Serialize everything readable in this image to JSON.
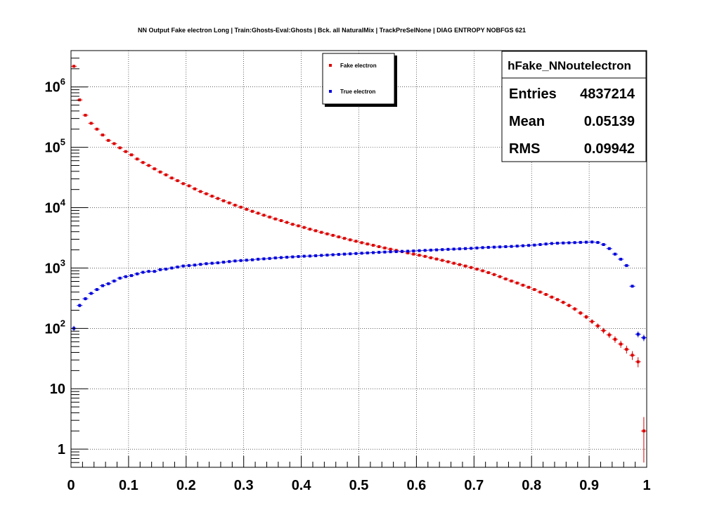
{
  "chart_data": {
    "type": "scatter",
    "title": "NN Output Fake electron Long | Train:Ghosts-Eval:Ghosts | Bck. all NaturalMix | TrackPreSelNone | DIAG ENTROPY NOBFGS 621",
    "xlabel": "",
    "ylabel": "",
    "xlim": [
      0,
      1
    ],
    "ylim": [
      0.5,
      4000000
    ],
    "log_y": true,
    "grid": true,
    "x_ticks": [
      {
        "v": 0,
        "label": "0"
      },
      {
        "v": 0.1,
        "label": "0.1"
      },
      {
        "v": 0.2,
        "label": "0.2"
      },
      {
        "v": 0.3,
        "label": "0.3"
      },
      {
        "v": 0.4,
        "label": "0.4"
      },
      {
        "v": 0.5,
        "label": "0.5"
      },
      {
        "v": 0.6,
        "label": "0.6"
      },
      {
        "v": 0.7,
        "label": "0.7"
      },
      {
        "v": 0.8,
        "label": "0.8"
      },
      {
        "v": 0.9,
        "label": "0.9"
      },
      {
        "v": 1,
        "label": "1"
      }
    ],
    "y_ticks": [
      {
        "v": 1,
        "main": "1",
        "exp": ""
      },
      {
        "v": 10,
        "main": "10",
        "exp": ""
      },
      {
        "v": 100,
        "main": "10",
        "exp": "2"
      },
      {
        "v": 1000,
        "main": "10",
        "exp": "3"
      },
      {
        "v": 10000,
        "main": "10",
        "exp": "4"
      },
      {
        "v": 100000,
        "main": "10",
        "exp": "5"
      },
      {
        "v": 1000000,
        "main": "10",
        "exp": "6"
      }
    ],
    "legend_position": "top-center",
    "series": [
      {
        "name": "Fake electron",
        "color": "#dd0000",
        "x": [
          0.005,
          0.015,
          0.025,
          0.035,
          0.045,
          0.055,
          0.065,
          0.075,
          0.085,
          0.095,
          0.105,
          0.115,
          0.125,
          0.135,
          0.145,
          0.155,
          0.165,
          0.175,
          0.185,
          0.195,
          0.205,
          0.215,
          0.225,
          0.235,
          0.245,
          0.255,
          0.265,
          0.275,
          0.285,
          0.295,
          0.305,
          0.315,
          0.325,
          0.335,
          0.345,
          0.355,
          0.365,
          0.375,
          0.385,
          0.395,
          0.405,
          0.415,
          0.425,
          0.435,
          0.445,
          0.455,
          0.465,
          0.475,
          0.485,
          0.495,
          0.505,
          0.515,
          0.525,
          0.535,
          0.545,
          0.555,
          0.565,
          0.575,
          0.585,
          0.595,
          0.605,
          0.615,
          0.625,
          0.635,
          0.645,
          0.655,
          0.665,
          0.675,
          0.685,
          0.695,
          0.705,
          0.715,
          0.725,
          0.735,
          0.745,
          0.755,
          0.765,
          0.775,
          0.785,
          0.795,
          0.805,
          0.815,
          0.825,
          0.835,
          0.845,
          0.855,
          0.865,
          0.875,
          0.885,
          0.895,
          0.905,
          0.915,
          0.925,
          0.935,
          0.945,
          0.955,
          0.965,
          0.975,
          0.985,
          0.995
        ],
        "y": [
          2200000,
          610000,
          340000,
          250000,
          200000,
          160000,
          130000,
          115000,
          98000,
          85000,
          75000,
          64000,
          56000,
          50000,
          44000,
          39000,
          35000,
          31000,
          28000,
          25000,
          23000,
          20500,
          18500,
          17000,
          15500,
          14200,
          13000,
          12000,
          11000,
          10200,
          9400,
          8700,
          8100,
          7500,
          7000,
          6500,
          6100,
          5700,
          5300,
          5000,
          4700,
          4400,
          4150,
          3900,
          3680,
          3480,
          3280,
          3100,
          2930,
          2780,
          2630,
          2500,
          2380,
          2260,
          2150,
          2050,
          1960,
          1870,
          1780,
          1700,
          1630,
          1560,
          1480,
          1410,
          1340,
          1270,
          1200,
          1140,
          1080,
          1020,
          960,
          900,
          840,
          780,
          720,
          660,
          610,
          565,
          520,
          480,
          440,
          400,
          365,
          330,
          300,
          270,
          240,
          210,
          180,
          155,
          130,
          110,
          92,
          78,
          66,
          55,
          45,
          36,
          28,
          2
        ],
        "err": [
          1500,
          780,
          580,
          500,
          450,
          400,
          360,
          340,
          313,
          292,
          274,
          253,
          237,
          224,
          210,
          197,
          187,
          176,
          167,
          158,
          152,
          143,
          136,
          130,
          124,
          119,
          114,
          110,
          105,
          101,
          97,
          93,
          90,
          87,
          84,
          81,
          78,
          75,
          73,
          71,
          69,
          66,
          64,
          62,
          61,
          59,
          57,
          56,
          54,
          53,
          51,
          50,
          49,
          48,
          46,
          45,
          44,
          43,
          42,
          41,
          40,
          39,
          38,
          38,
          37,
          36,
          35,
          34,
          33,
          32,
          31,
          30,
          29,
          28,
          27,
          26,
          25,
          24,
          23,
          22,
          21,
          20,
          19,
          18,
          17,
          16,
          15.5,
          14.5,
          13.4,
          12.4,
          11.4,
          10.5,
          9.6,
          8.8,
          8.1,
          7.4,
          6.7,
          6,
          5.3,
          1.4
        ]
      },
      {
        "name": "True electron",
        "color": "#0000dd",
        "x": [
          0.005,
          0.015,
          0.025,
          0.035,
          0.045,
          0.055,
          0.065,
          0.075,
          0.085,
          0.095,
          0.105,
          0.115,
          0.125,
          0.135,
          0.145,
          0.155,
          0.165,
          0.175,
          0.185,
          0.195,
          0.205,
          0.215,
          0.225,
          0.235,
          0.245,
          0.255,
          0.265,
          0.275,
          0.285,
          0.295,
          0.305,
          0.315,
          0.325,
          0.335,
          0.345,
          0.355,
          0.365,
          0.375,
          0.385,
          0.395,
          0.405,
          0.415,
          0.425,
          0.435,
          0.445,
          0.455,
          0.465,
          0.475,
          0.485,
          0.495,
          0.505,
          0.515,
          0.525,
          0.535,
          0.545,
          0.555,
          0.565,
          0.575,
          0.585,
          0.595,
          0.605,
          0.615,
          0.625,
          0.635,
          0.645,
          0.655,
          0.665,
          0.675,
          0.685,
          0.695,
          0.705,
          0.715,
          0.725,
          0.735,
          0.745,
          0.755,
          0.765,
          0.775,
          0.785,
          0.795,
          0.805,
          0.815,
          0.825,
          0.835,
          0.845,
          0.855,
          0.865,
          0.875,
          0.885,
          0.895,
          0.905,
          0.915,
          0.925,
          0.935,
          0.945,
          0.955,
          0.965,
          0.975,
          0.985,
          0.995
        ],
        "y": [
          100,
          240,
          310,
          380,
          440,
          510,
          550,
          610,
          680,
          720,
          750,
          800,
          850,
          880,
          880,
          940,
          960,
          1000,
          1040,
          1080,
          1100,
          1120,
          1150,
          1180,
          1200,
          1220,
          1250,
          1280,
          1310,
          1330,
          1350,
          1370,
          1400,
          1420,
          1440,
          1470,
          1490,
          1510,
          1530,
          1550,
          1570,
          1580,
          1600,
          1620,
          1640,
          1660,
          1680,
          1700,
          1720,
          1740,
          1760,
          1780,
          1800,
          1820,
          1840,
          1860,
          1870,
          1890,
          1900,
          1920,
          1940,
          1960,
          1980,
          2000,
          2020,
          2040,
          2060,
          2080,
          2100,
          2120,
          2150,
          2180,
          2200,
          2220,
          2240,
          2260,
          2280,
          2310,
          2340,
          2370,
          2400,
          2450,
          2500,
          2550,
          2580,
          2600,
          2620,
          2640,
          2660,
          2680,
          2700,
          2650,
          2450,
          2100,
          1700,
          1400,
          1100,
          500,
          80,
          70
        ],
        "err": [
          10,
          15.5,
          17.6,
          19.5,
          21,
          22.6,
          23.5,
          24.7,
          26,
          26.8,
          27.4,
          28.3,
          29.2,
          29.7,
          29.7,
          30.7,
          31,
          31.6,
          32.2,
          32.9,
          33.2,
          33.5,
          33.9,
          34.4,
          34.6,
          34.9,
          35.4,
          35.8,
          36.2,
          36.5,
          36.7,
          37,
          37.4,
          37.7,
          37.9,
          38.3,
          38.6,
          38.9,
          39.1,
          39.4,
          39.6,
          39.7,
          40,
          40.2,
          40.5,
          40.7,
          41,
          41.2,
          41.5,
          41.7,
          42,
          42.2,
          42.4,
          42.7,
          42.9,
          43.1,
          43.2,
          43.5,
          43.6,
          43.8,
          44,
          44.3,
          44.5,
          44.7,
          44.9,
          45.2,
          45.4,
          45.6,
          45.8,
          46,
          46.4,
          46.7,
          46.9,
          47.1,
          47.3,
          47.5,
          47.7,
          48.1,
          48.4,
          48.7,
          49,
          49.5,
          50,
          50.5,
          50.8,
          51,
          51.2,
          51.4,
          51.6,
          51.8,
          52,
          51.5,
          49.5,
          45.8,
          41.2,
          37.4,
          33.2,
          22.4,
          8.9,
          8.4
        ]
      }
    ],
    "stats_box": {
      "title": "hFake_NNoutelectron",
      "rows": [
        {
          "label": "Entries",
          "value": "4837214"
        },
        {
          "label": "Mean",
          "value": "0.05139"
        },
        {
          "label": "RMS",
          "value": "0.09942"
        }
      ]
    }
  }
}
